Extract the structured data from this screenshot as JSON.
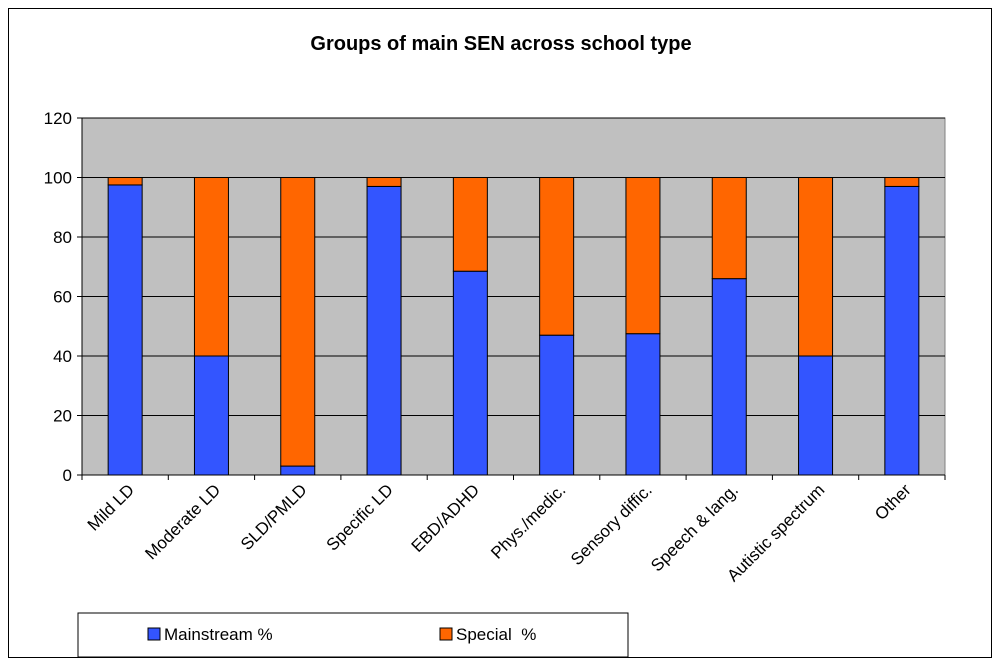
{
  "chart_data": {
    "type": "bar",
    "stacked": true,
    "title": "Groups of main SEN across school type",
    "xlabel": "",
    "ylabel": "",
    "categories": [
      "Mild LD",
      "Moderate LD",
      "SLD/PMLD",
      "Specific LD",
      "EBD/ADHD",
      "Phys./medic.",
      "Sensory diffic.",
      "Speech & lang.",
      "Autistic spectrum",
      "Other"
    ],
    "series": [
      {
        "name": "Mainstream %",
        "color": "#3355ff",
        "values": [
          97.5,
          40,
          3,
          97,
          68.5,
          47,
          47.5,
          66,
          40,
          97
        ]
      },
      {
        "name": "Special  %",
        "color": "#ff6600",
        "values": [
          2.5,
          60,
          97,
          3,
          31.5,
          53,
          52.5,
          34,
          60,
          3
        ]
      }
    ],
    "ylim": [
      0,
      120
    ],
    "yticks": [
      0,
      20,
      40,
      60,
      80,
      100,
      120
    ],
    "grid": true,
    "plot_background": "#c0c0c0",
    "legend_position": "bottom"
  }
}
